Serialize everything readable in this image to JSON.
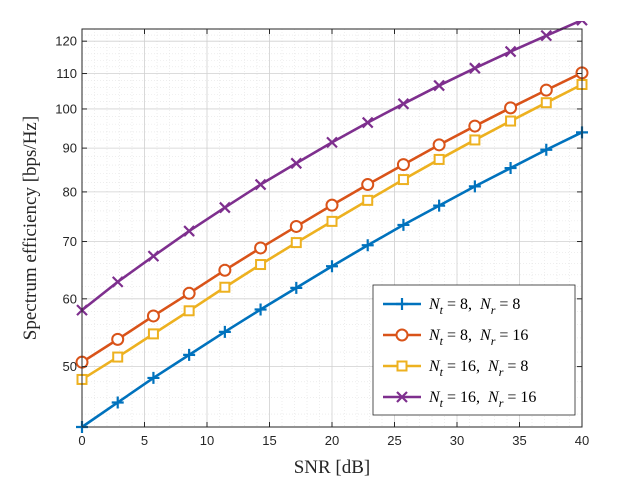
{
  "chart_data": {
    "type": "line",
    "xlabel": "SNR [dB]",
    "ylabel": "Spectrum efficiency [bps/Hz]",
    "xlim": [
      0,
      40
    ],
    "ylim": [
      42.5,
      124
    ],
    "yscale": "log",
    "grid": true,
    "minor_grid": true,
    "legend_position": "bottom-right",
    "x_ticks": [
      0,
      5,
      10,
      15,
      20,
      25,
      30,
      35,
      40
    ],
    "y_ticks": [
      50,
      60,
      70,
      80,
      90,
      100,
      110,
      120
    ],
    "x": [
      0,
      2.857,
      5.714,
      8.571,
      11.429,
      14.286,
      17.143,
      20,
      22.857,
      25.714,
      28.571,
      31.429,
      34.286,
      37.143,
      40
    ],
    "series": [
      {
        "name_parts": [
          "N",
          "t",
          " = 8,  ",
          "N",
          "r",
          " = 8"
        ],
        "color": "#0072BD",
        "marker": "plus",
        "values": [
          42.5,
          45.4,
          48.5,
          51.6,
          54.9,
          58.3,
          61.8,
          65.5,
          69.3,
          73.2,
          77.1,
          81.2,
          85.3,
          89.6,
          93.9
        ]
      },
      {
        "name_parts": [
          "N",
          "t",
          " = 8,  ",
          "N",
          "r",
          " = 16"
        ],
        "color": "#D95319",
        "marker": "circle",
        "values": [
          50.6,
          53.8,
          57.3,
          60.9,
          64.8,
          68.8,
          72.9,
          77.2,
          81.6,
          86.1,
          90.8,
          95.5,
          100.3,
          105.2,
          110.2
        ]
      },
      {
        "name_parts": [
          "N",
          "t",
          " = 16,  ",
          "N",
          "r",
          " = 8"
        ],
        "color": "#EDB120",
        "marker": "square",
        "values": [
          48.3,
          51.3,
          54.6,
          58.1,
          61.9,
          65.8,
          69.8,
          73.9,
          78.2,
          82.7,
          87.3,
          92.0,
          96.8,
          101.7,
          106.8
        ]
      },
      {
        "name_parts": [
          "N",
          "t",
          " = 16,  ",
          "N",
          "r",
          " = 16"
        ],
        "color": "#7E2F8E",
        "marker": "x",
        "values": [
          58.2,
          62.8,
          67.3,
          72.0,
          76.7,
          81.6,
          86.4,
          91.4,
          96.4,
          101.4,
          106.5,
          111.6,
          116.7,
          121.8,
          127.0
        ]
      }
    ]
  }
}
